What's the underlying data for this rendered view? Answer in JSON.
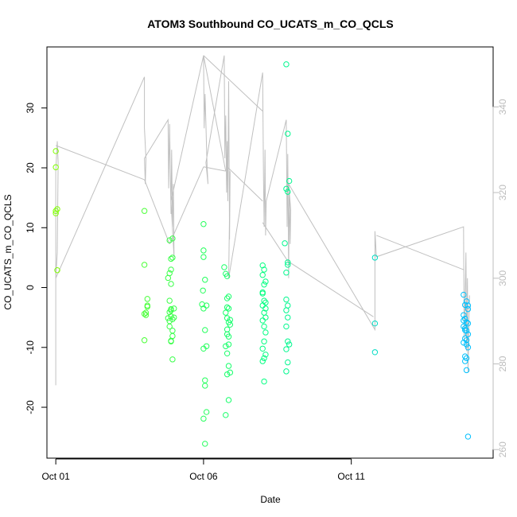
{
  "chart_data": {
    "type": "scatter",
    "title": "ATOM3 Southbound CO_UCATS_m_CO_QCLS",
    "xlabel": "Date",
    "ylabel": "CO_UCATS_m_CO_QCLS",
    "x_ticks": [
      "Oct 01",
      "Oct 06",
      "Oct 11"
    ],
    "xlim_days": [
      -0.3,
      14.8
    ],
    "ylim": [
      -28.5,
      40.2
    ],
    "y_ticks": [
      -20,
      -10,
      0,
      10,
      20,
      30
    ],
    "y2lim": [
      258,
      354
    ],
    "y2_ticks": [
      260,
      280,
      300,
      320,
      340
    ],
    "colors": {
      "axis": "#000000",
      "secondary": "#bdbdbd",
      "line": "#c0c0c0"
    },
    "series": [
      {
        "kind": "scatter",
        "axis": "left",
        "x": [
          0.0,
          0.0,
          0.0,
          0.05,
          0.05,
          0.0,
          3.0,
          3.0,
          3.1,
          3.1,
          3.05,
          3.0,
          3.0,
          3.05,
          3.1,
          3.8,
          3.85,
          3.9,
          3.85,
          3.9,
          3.8,
          3.85,
          3.9,
          3.95,
          3.85,
          3.9,
          3.95,
          3.9,
          3.85,
          3.95,
          3.95,
          4.0,
          3.9,
          3.85,
          3.95,
          3.9,
          3.95,
          3.9,
          4.0,
          5.0,
          5.0,
          5.0,
          5.05,
          4.95,
          5.0,
          5.05,
          5.1,
          5.0,
          5.05,
          5.05,
          5.1,
          5.0,
          5.05,
          5.1,
          4.98,
          5.7,
          5.75,
          5.8,
          5.85,
          5.8,
          5.75,
          5.8,
          5.85,
          5.9,
          5.8,
          5.85,
          5.75,
          5.8,
          5.85,
          5.9,
          5.8,
          5.85,
          5.75,
          5.8,
          5.85,
          5.9,
          5.8,
          5.85,
          7.0,
          7.05,
          7.0,
          7.1,
          7.05,
          7.0,
          7.05,
          7.1,
          7.0,
          7.05,
          7.1,
          7.0,
          7.05,
          7.1,
          7.05,
          7.0,
          7.1,
          7.05,
          7.0,
          7.05,
          7.0,
          7.1,
          7.8,
          7.85,
          7.8,
          7.85,
          7.75,
          7.85,
          7.8,
          7.85,
          7.9,
          7.8,
          7.85,
          7.8,
          7.85,
          7.8,
          7.85,
          7.9,
          7.8,
          7.85,
          7.8,
          10.8,
          10.8,
          10.8,
          13.8,
          13.9,
          13.85,
          13.95,
          13.8,
          13.85,
          13.9,
          13.95,
          13.8,
          13.85,
          13.9,
          13.95,
          13.85,
          13.9,
          13.8,
          13.95,
          13.85,
          13.9,
          13.85,
          13.9,
          13.95,
          13.8,
          13.85,
          13.9,
          13.95
        ],
        "y": [
          22.8,
          20.1,
          12.4,
          13.1,
          2.9,
          12.8,
          12.8,
          3.8,
          -1.9,
          -3.0,
          -4.2,
          -4.4,
          -8.8,
          -4.6,
          -3.2,
          1.6,
          -2.2,
          0.6,
          2.4,
          -3.6,
          -5.1,
          -5.6,
          -8.9,
          8.2,
          7.9,
          4.8,
          5.0,
          3.0,
          -6.5,
          -12.0,
          -7.2,
          -5.0,
          -3.8,
          -4.1,
          -8.1,
          -9.0,
          -5.3,
          -4.8,
          -3.5,
          10.6,
          6.2,
          5.1,
          1.3,
          -2.8,
          -3.5,
          -7.1,
          -9.8,
          -10.2,
          -15.5,
          -16.4,
          -20.8,
          -21.9,
          -26.1,
          -3.0,
          -0.5,
          3.4,
          2.3,
          1.9,
          -1.5,
          -3.3,
          -4.2,
          -5.1,
          -5.8,
          -6.2,
          -7.0,
          -8.2,
          -9.8,
          -11.0,
          -13.1,
          -14.2,
          -14.5,
          -18.8,
          -21.3,
          -1.8,
          -3.5,
          -5.4,
          -7.8,
          -9.5,
          3.7,
          3.0,
          2.1,
          1.0,
          0.5,
          -1.0,
          -2.2,
          -2.5,
          -3.0,
          -4.2,
          -5.0,
          -5.5,
          -6.5,
          -7.5,
          -9.0,
          -10.2,
          -11.2,
          -11.8,
          -12.3,
          -15.7,
          -0.8,
          -3.5,
          37.3,
          25.7,
          16.5,
          16.0,
          7.4,
          4.2,
          2.5,
          3.8,
          17.8,
          -2.0,
          -3.0,
          -3.8,
          -5.0,
          -6.5,
          -9.0,
          -9.5,
          -10.3,
          -12.5,
          -14.0,
          5.0,
          -6.0,
          -10.8,
          -1.2,
          -2.3,
          -2.9,
          -3.6,
          -4.6,
          -5.2,
          -5.8,
          -6.0,
          -6.5,
          -7.1,
          -7.2,
          -7.8,
          -8.5,
          -8.8,
          -9.2,
          -10.0,
          -11.5,
          -11.8,
          -12.3,
          -13.8,
          -24.9,
          -5.5,
          -6.8,
          -9.5,
          -3.0
        ],
        "colors": [
          "#7fff00",
          "#00ff7f",
          "#00bfff"
        ]
      },
      {
        "kind": "line",
        "axis": "right",
        "x": [
          0.0,
          0.0,
          0.05,
          0.08,
          0.05,
          0.0,
          3.0,
          3.0,
          3.05,
          3.03,
          3.0,
          3.8,
          3.82,
          3.85,
          3.9,
          3.92,
          3.95,
          3.98,
          4.0,
          3.9,
          5.0,
          5.02,
          5.05,
          5.08,
          5.1,
          5.12,
          5.15,
          5.08,
          5.7,
          5.72,
          5.75,
          5.78,
          5.8,
          5.82,
          5.85,
          5.88,
          5.9,
          5.85,
          7.0,
          7.03,
          7.05,
          7.08,
          7.1,
          7.12,
          7.8,
          7.83,
          7.85,
          7.88,
          7.9,
          7.93,
          7.95,
          7.88,
          10.8,
          10.8,
          10.85,
          13.8,
          13.82,
          13.85,
          13.88,
          13.9,
          13.93,
          13.95,
          13.98,
          14.0
        ],
        "y": [
          275,
          325,
          332,
          327,
          306,
          300,
          347,
          335,
          328,
          322,
          328,
          337,
          321,
          336,
          315,
          330,
          312,
          322,
          305,
          318,
          352,
          335,
          343,
          336,
          331,
          326,
          322,
          327,
          352,
          328,
          338,
          320,
          332,
          318,
          346,
          309,
          325,
          300,
          348,
          323,
          312,
          330,
          310,
          318,
          337,
          312,
          329,
          300,
          321,
          308,
          316,
          322,
          288,
          311,
          305,
          312,
          286,
          295,
          306,
          283,
          300,
          278,
          289,
          296
        ],
        "segments": [
          [
            [
              0.0,
              331
            ],
            [
              3.0,
              323
            ]
          ],
          [
            [
              3.0,
              323
            ],
            [
              3.85,
              308
            ]
          ],
          [
            [
              3.85,
              308
            ],
            [
              5.0,
              326
            ]
          ],
          [
            [
              5.0,
              326
            ],
            [
              5.75,
              325
            ]
          ],
          [
            [
              5.75,
              325
            ],
            [
              5.0,
              352
            ]
          ],
          [
            [
              5.0,
              352
            ],
            [
              7.0,
              339
            ]
          ],
          [
            [
              5.8,
              326
            ],
            [
              7.0,
              318
            ]
          ],
          [
            [
              7.0,
              313
            ],
            [
              7.85,
              304
            ]
          ],
          [
            [
              7.85,
              304
            ],
            [
              10.75,
              291
            ]
          ],
          [
            [
              10.85,
              310
            ],
            [
              13.8,
              302
            ]
          ]
        ]
      }
    ]
  }
}
